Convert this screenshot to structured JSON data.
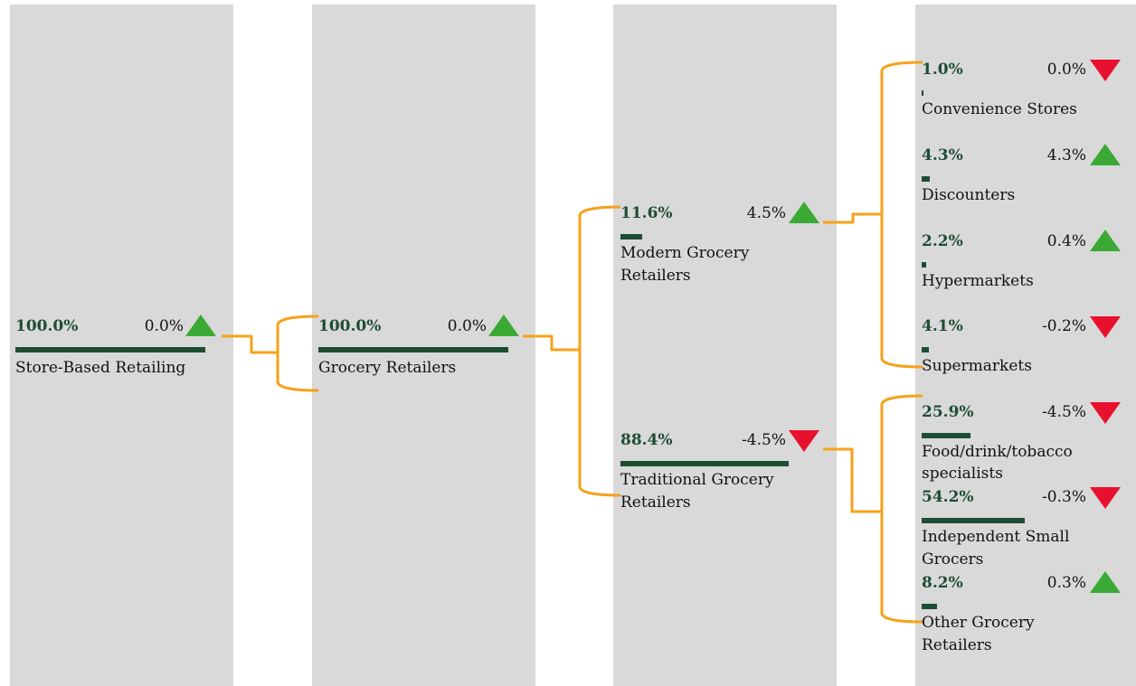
{
  "colors": {
    "column_bg": "#d9d9d9",
    "bar": "#1e4d35",
    "connector": "#f7a11a",
    "up": "#3aaa35",
    "down": "#e8112d"
  },
  "level1": {
    "share": "100.0%",
    "growth": "0.0%",
    "direction": "up",
    "label": "Store-Based Retailing"
  },
  "level2": {
    "share": "100.0%",
    "growth": "0.0%",
    "direction": "up",
    "label": "Grocery Retailers"
  },
  "level3": [
    {
      "share": "11.6%",
      "growth": "4.5%",
      "direction": "up",
      "label_lines": [
        "Modern Grocery",
        "Retailers"
      ]
    },
    {
      "share": "88.4%",
      "growth": "-4.5%",
      "direction": "down",
      "label_lines": [
        "Traditional Grocery",
        "Retailers"
      ]
    }
  ],
  "level4_modern": [
    {
      "share": "1.0%",
      "growth": "0.0%",
      "direction": "down",
      "label_lines": [
        "Convenience Stores"
      ]
    },
    {
      "share": "4.3%",
      "growth": "4.3%",
      "direction": "up",
      "label_lines": [
        "Discounters"
      ]
    },
    {
      "share": "2.2%",
      "growth": "0.4%",
      "direction": "up",
      "label_lines": [
        "Hypermarkets"
      ]
    },
    {
      "share": "4.1%",
      "growth": "-0.2%",
      "direction": "down",
      "label_lines": [
        "Supermarkets"
      ]
    }
  ],
  "level4_traditional": [
    {
      "share": "25.9%",
      "growth": "-4.5%",
      "direction": "down",
      "label_lines": [
        "Food/drink/tobacco",
        "specialists"
      ]
    },
    {
      "share": "54.2%",
      "growth": "-0.3%",
      "direction": "down",
      "label_lines": [
        "Independent Small",
        "Grocers"
      ]
    },
    {
      "share": "8.2%",
      "growth": "0.3%",
      "direction": "up",
      "label_lines": [
        "Other Grocery",
        "Retailers"
      ]
    }
  ]
}
